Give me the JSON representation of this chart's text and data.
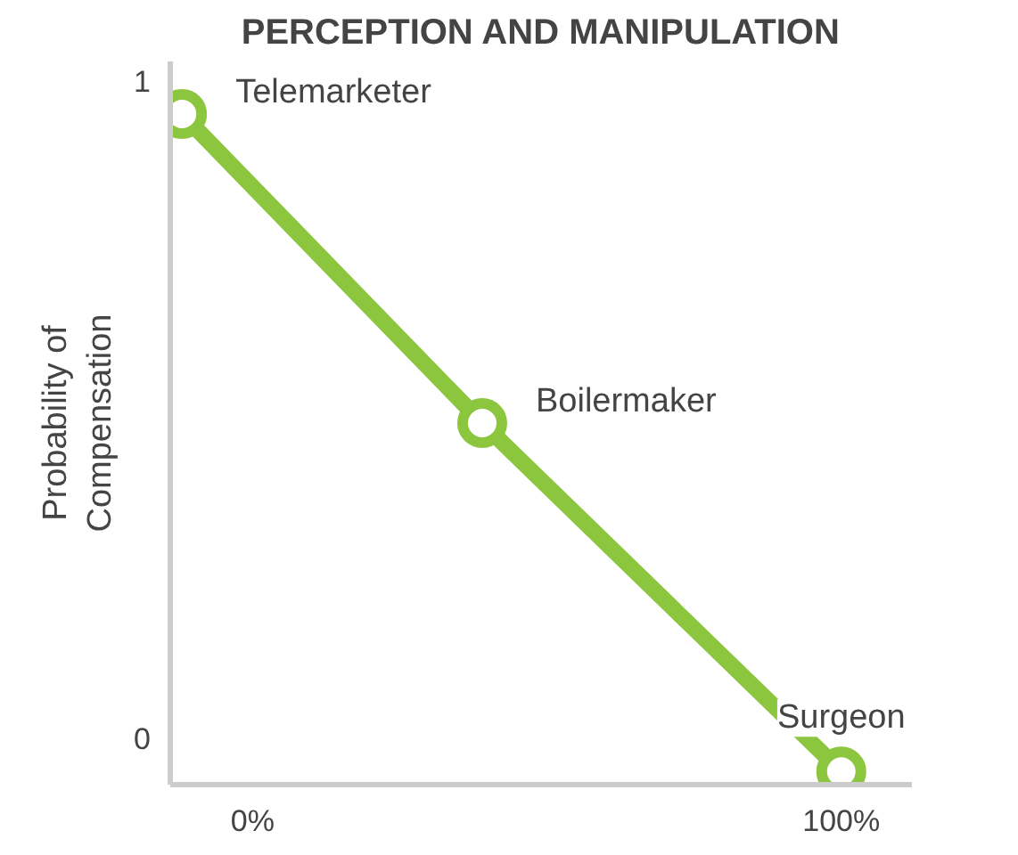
{
  "chart_data": {
    "type": "line",
    "title": "PERCEPTION AND MANIPULATION",
    "ylabel": "Probability of\nCompensation",
    "x": [
      -12,
      39,
      100
    ],
    "series": [
      {
        "color": "#8cc63f",
        "values": [
          0.95,
          0.48,
          -0.05
        ]
      }
    ],
    "annotations": [
      {
        "text": "Telemarketer",
        "x": -12,
        "y": 0.95
      },
      {
        "text": "Boilermaker",
        "x": 39,
        "y": 0.48
      },
      {
        "text": "Surgeon",
        "x": 100,
        "y": -0.05
      }
    ],
    "xlim": [
      -14,
      112
    ],
    "ylim": [
      -0.07,
      1.03
    ],
    "xticks": [
      {
        "value": 0,
        "label": "0%"
      },
      {
        "value": 100,
        "label": "100%"
      }
    ],
    "yticks": [
      0,
      1
    ],
    "grid": false,
    "marker": "circle",
    "line_style": "solid"
  }
}
